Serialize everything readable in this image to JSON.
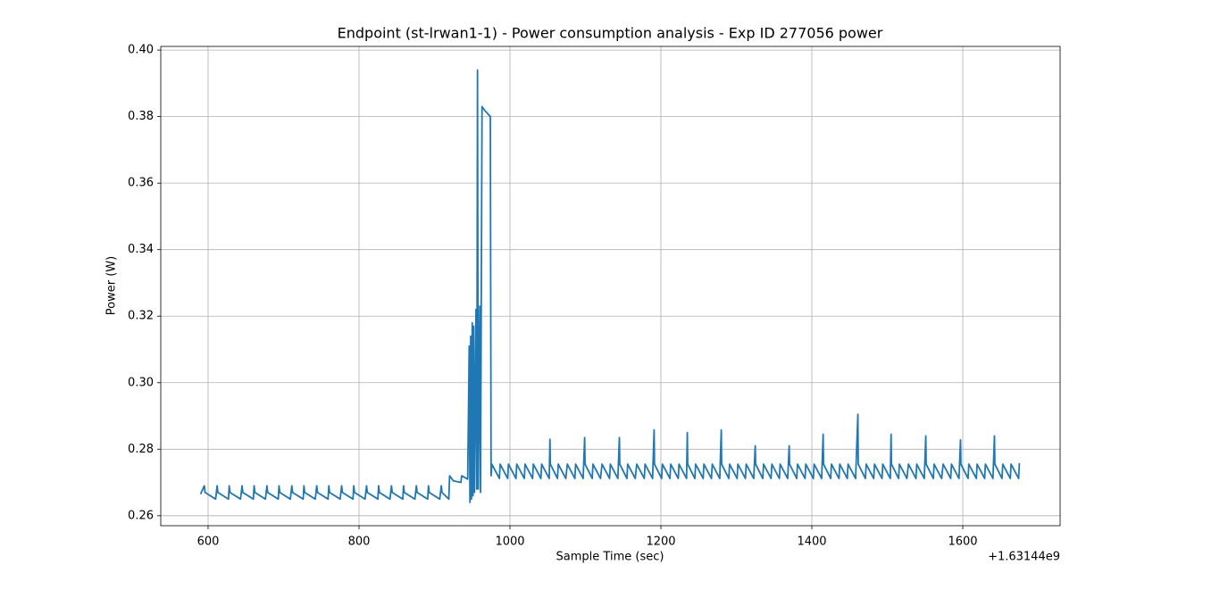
{
  "chart_data": {
    "type": "line",
    "title": "Endpoint (st-lrwan1-1) - Power consumption analysis - Exp ID 277056 power",
    "x_label": "Sample Time (sec)",
    "y_label": "Power (W)",
    "x_offset_label": "+1.63144e9",
    "color": "#1f77b4",
    "grid": true,
    "xlim": [
      537.3,
      1729
    ],
    "ylim": [
      0.257,
      0.4011
    ],
    "xticks": [
      600,
      800,
      1000,
      1200,
      1400,
      1600
    ],
    "yticks": [
      0.26,
      0.28,
      {
        "value": 0.3,
        "label": "0.30"
      },
      0.32,
      0.34,
      0.36,
      0.38,
      {
        "value": 0.4,
        "label": "0.40"
      }
    ],
    "x": [
      590,
      595,
      596,
      610,
      612,
      613,
      627,
      628,
      629,
      643,
      645,
      646,
      660,
      661,
      662,
      676,
      678,
      679,
      693,
      694,
      695,
      709,
      711,
      712,
      726,
      727,
      728,
      742,
      744,
      745,
      759,
      760,
      761,
      775,
      777,
      778,
      792,
      793,
      794,
      808,
      810,
      811,
      825,
      826,
      827,
      841,
      843,
      844,
      858,
      859,
      860,
      874,
      876,
      877,
      891,
      892,
      893,
      907,
      909,
      910,
      919,
      920,
      925,
      935,
      936,
      944,
      946,
      947,
      948,
      949,
      950,
      951,
      952,
      953,
      955,
      956,
      957,
      958,
      960,
      961,
      963,
      966,
      970,
      974,
      975,
      976,
      986,
      987,
      997,
      998,
      1008,
      1009,
      1019,
      1020,
      1030,
      1031,
      1041,
      1042,
      1052,
      1053,
      1053.5,
      1063,
      1064,
      1074,
      1076,
      1086,
      1087,
      1097,
      1099,
      1099.5,
      1109,
      1110,
      1120,
      1122,
      1132,
      1133,
      1143,
      1145,
      1145.5,
      1155,
      1156,
      1166,
      1168,
      1178,
      1179,
      1189,
      1191,
      1191.5,
      1201,
      1202,
      1212,
      1213,
      1223,
      1224,
      1234,
      1235,
      1235.5,
      1245,
      1246,
      1256,
      1257,
      1267,
      1268,
      1278,
      1280,
      1280.5,
      1290,
      1291,
      1301,
      1302,
      1312,
      1313,
      1323,
      1325,
      1325.5,
      1335,
      1336,
      1346,
      1347,
      1357,
      1358,
      1368,
      1370,
      1370.5,
      1380,
      1381,
      1391,
      1392,
      1402,
      1403,
      1413,
      1415,
      1415.5,
      1425,
      1426,
      1436,
      1437,
      1447,
      1448,
      1458,
      1461,
      1461.5,
      1471,
      1472,
      1482,
      1483,
      1493,
      1494,
      1504,
      1505,
      1505.5,
      1515,
      1516,
      1526,
      1528,
      1538,
      1539,
      1549,
      1551,
      1551.5,
      1561,
      1562,
      1572,
      1574,
      1584,
      1585,
      1595,
      1597,
      1597.5,
      1607,
      1608,
      1618,
      1619,
      1629,
      1630,
      1640,
      1642,
      1642.5,
      1652,
      1653,
      1663,
      1664,
      1674,
      1675
    ],
    "values": [
      0.2665,
      0.269,
      0.267,
      0.265,
      0.269,
      0.267,
      0.265,
      0.269,
      0.267,
      0.265,
      0.269,
      0.267,
      0.265,
      0.269,
      0.267,
      0.265,
      0.269,
      0.267,
      0.265,
      0.269,
      0.267,
      0.265,
      0.269,
      0.267,
      0.265,
      0.269,
      0.267,
      0.265,
      0.269,
      0.267,
      0.265,
      0.269,
      0.267,
      0.265,
      0.269,
      0.267,
      0.265,
      0.269,
      0.267,
      0.265,
      0.269,
      0.267,
      0.265,
      0.269,
      0.267,
      0.265,
      0.269,
      0.267,
      0.265,
      0.269,
      0.267,
      0.265,
      0.269,
      0.267,
      0.265,
      0.269,
      0.267,
      0.265,
      0.269,
      0.267,
      0.265,
      0.272,
      0.2705,
      0.27,
      0.272,
      0.271,
      0.311,
      0.264,
      0.314,
      0.265,
      0.318,
      0.266,
      0.317,
      0.267,
      0.322,
      0.268,
      0.394,
      0.268,
      0.323,
      0.267,
      0.383,
      0.382,
      0.381,
      0.38,
      0.272,
      0.2755,
      0.2712,
      0.2755,
      0.2712,
      0.2755,
      0.2712,
      0.2755,
      0.2712,
      0.2755,
      0.2712,
      0.2755,
      0.2712,
      0.2755,
      0.2712,
      0.283,
      0.2755,
      0.2712,
      0.2755,
      0.2712,
      0.2755,
      0.2712,
      0.2755,
      0.2712,
      0.2835,
      0.2755,
      0.2712,
      0.2755,
      0.2712,
      0.2755,
      0.2712,
      0.2755,
      0.2712,
      0.2835,
      0.2755,
      0.2712,
      0.2755,
      0.2712,
      0.2755,
      0.2712,
      0.2755,
      0.2712,
      0.2858,
      0.2755,
      0.2712,
      0.2755,
      0.2712,
      0.2755,
      0.2712,
      0.2755,
      0.2712,
      0.285,
      0.2755,
      0.2712,
      0.2755,
      0.2712,
      0.2755,
      0.2712,
      0.2755,
      0.2712,
      0.2858,
      0.2755,
      0.2712,
      0.2755,
      0.2712,
      0.2755,
      0.2712,
      0.2755,
      0.2712,
      0.281,
      0.2755,
      0.2712,
      0.2755,
      0.2712,
      0.2755,
      0.2712,
      0.2755,
      0.2712,
      0.281,
      0.2755,
      0.2712,
      0.2755,
      0.2712,
      0.2755,
      0.2712,
      0.2755,
      0.2712,
      0.2845,
      0.2755,
      0.2712,
      0.2755,
      0.2712,
      0.2755,
      0.2712,
      0.2755,
      0.2712,
      0.2905,
      0.2755,
      0.2712,
      0.2755,
      0.2712,
      0.2755,
      0.2712,
      0.2755,
      0.2712,
      0.2845,
      0.2755,
      0.2712,
      0.2755,
      0.2712,
      0.2755,
      0.2712,
      0.2755,
      0.2712,
      0.284,
      0.2755,
      0.2712,
      0.2755,
      0.2712,
      0.2755,
      0.2712,
      0.2755,
      0.2712,
      0.2828,
      0.2755,
      0.2712,
      0.2755,
      0.2712,
      0.2755,
      0.2712,
      0.2755,
      0.2712,
      0.284,
      0.2755,
      0.2712,
      0.2755,
      0.2712,
      0.2755,
      0.2712,
      0.2758
    ]
  }
}
